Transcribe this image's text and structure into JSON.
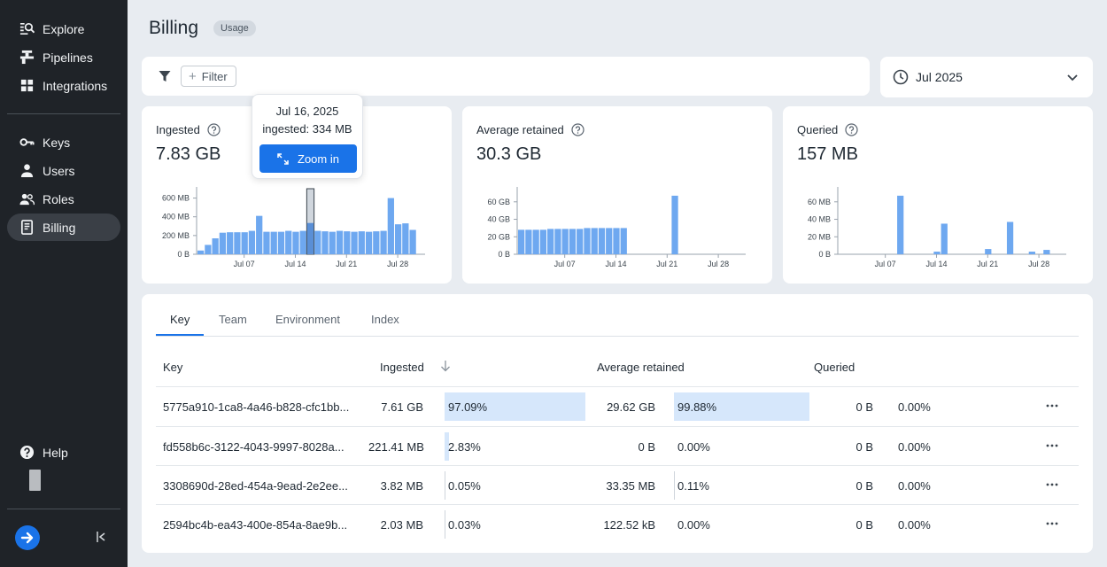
{
  "sidebar": {
    "items": [
      {
        "label": "Explore",
        "icon": "explore-icon"
      },
      {
        "label": "Pipelines",
        "icon": "pipelines-icon"
      },
      {
        "label": "Integrations",
        "icon": "integrations-icon"
      },
      {
        "label": "Keys",
        "icon": "key-icon"
      },
      {
        "label": "Users",
        "icon": "user-icon"
      },
      {
        "label": "Roles",
        "icon": "roles-icon"
      },
      {
        "label": "Billing",
        "icon": "billing-icon"
      }
    ],
    "help_label": "Help",
    "active": "Billing"
  },
  "header": {
    "title": "Billing",
    "badge": "Usage"
  },
  "filter": {
    "button_label": "Filter"
  },
  "date": {
    "value": "Jul 2025"
  },
  "metrics": [
    {
      "label": "Ingested",
      "value": "7.83 GB"
    },
    {
      "label": "Average retained",
      "value": "30.3 GB"
    },
    {
      "label": "Queried",
      "value": "157 MB"
    }
  ],
  "tooltip": {
    "date": "Jul 16, 2025",
    "detail": "ingested: 334 MB",
    "button": "Zoom in"
  },
  "chart_data": [
    {
      "type": "bar",
      "title": "Ingested",
      "ylabel": "MB",
      "ylim": [
        0,
        700
      ],
      "yticks": [
        "0 B",
        "200 MB",
        "400 MB",
        "600 MB"
      ],
      "ytick_values": [
        0,
        200,
        400,
        600
      ],
      "xticks": [
        "Jul 07",
        "Jul 14",
        "Jul 21",
        "Jul 28"
      ],
      "xtick_days": [
        7,
        14,
        21,
        28
      ],
      "days": [
        1,
        2,
        3,
        4,
        5,
        6,
        7,
        8,
        9,
        10,
        11,
        12,
        13,
        14,
        15,
        16,
        17,
        18,
        19,
        20,
        21,
        22,
        23,
        24,
        25,
        26,
        27,
        28,
        29,
        30,
        31
      ],
      "values": [
        40,
        100,
        170,
        230,
        235,
        235,
        235,
        250,
        410,
        240,
        240,
        240,
        250,
        240,
        250,
        334,
        250,
        245,
        240,
        250,
        245,
        240,
        245,
        240,
        245,
        250,
        600,
        320,
        330,
        260,
        null
      ],
      "highlight_day": 16
    },
    {
      "type": "bar",
      "title": "Average retained",
      "ylabel": "GB",
      "ylim": [
        0,
        75
      ],
      "yticks": [
        "0 B",
        "20 GB",
        "40 GB",
        "60 GB"
      ],
      "ytick_values": [
        0,
        20,
        40,
        60
      ],
      "xticks": [
        "Jul 07",
        "Jul 14",
        "Jul 21",
        "Jul 28"
      ],
      "xtick_days": [
        7,
        14,
        21,
        28
      ],
      "days": [
        1,
        2,
        3,
        4,
        5,
        6,
        7,
        8,
        9,
        10,
        11,
        12,
        13,
        14,
        15,
        16,
        17,
        18,
        19,
        20,
        21,
        22,
        23,
        24,
        25,
        26,
        27,
        28,
        29,
        30,
        31
      ],
      "values": [
        28,
        28,
        28,
        28,
        29,
        29,
        29,
        29,
        29,
        30,
        30,
        30,
        30,
        30,
        30,
        null,
        null,
        null,
        null,
        null,
        null,
        67,
        null,
        null,
        null,
        null,
        null,
        null,
        null,
        null,
        null
      ]
    },
    {
      "type": "bar",
      "title": "Queried",
      "ylabel": "MB",
      "ylim": [
        0,
        75
      ],
      "yticks": [
        "0 B",
        "20 MB",
        "40 MB",
        "60 MB"
      ],
      "ytick_values": [
        0,
        20,
        40,
        60
      ],
      "xticks": [
        "Jul 07",
        "Jul 14",
        "Jul 21",
        "Jul 28"
      ],
      "xtick_days": [
        7,
        14,
        21,
        28
      ],
      "days": [
        1,
        2,
        3,
        4,
        5,
        6,
        7,
        8,
        9,
        10,
        11,
        12,
        13,
        14,
        15,
        16,
        17,
        18,
        19,
        20,
        21,
        22,
        23,
        24,
        25,
        26,
        27,
        28,
        29,
        30,
        31
      ],
      "values": [
        null,
        null,
        null,
        null,
        null,
        null,
        null,
        null,
        67,
        null,
        null,
        null,
        null,
        3,
        35,
        null,
        null,
        null,
        null,
        null,
        6,
        null,
        null,
        37,
        null,
        null,
        3,
        null,
        5,
        null,
        null
      ]
    }
  ],
  "table": {
    "tabs": [
      "Key",
      "Team",
      "Environment",
      "Index"
    ],
    "active_tab": "Key",
    "columns": [
      "Key",
      "Ingested",
      "Average retained",
      "Queried"
    ],
    "rows": [
      {
        "key": "5775a910-1ca8-4a46-b828-cfc1bb...",
        "ingested": "7.61 GB",
        "ingested_pct": "97.09%",
        "ingested_frac": 0.9709,
        "retained": "29.62 GB",
        "retained_pct": "99.88%",
        "retained_frac": 0.9988,
        "queried": "0 B",
        "queried_pct": "0.00%"
      },
      {
        "key": "fd558b6c-3122-4043-9997-8028a...",
        "ingested": "221.41 MB",
        "ingested_pct": "2.83%",
        "ingested_frac": 0.0283,
        "retained": "0 B",
        "retained_pct": "0.00%",
        "retained_frac": 0,
        "queried": "0 B",
        "queried_pct": "0.00%"
      },
      {
        "key": "3308690d-28ed-454a-9ead-2e2ee...",
        "ingested": "3.82 MB",
        "ingested_pct": "0.05%",
        "ingested_frac": 0.0005,
        "retained": "33.35 MB",
        "retained_pct": "0.11%",
        "retained_frac": 0.0011,
        "queried": "0 B",
        "queried_pct": "0.00%"
      },
      {
        "key": "2594bc4b-ea43-400e-854a-8ae9b...",
        "ingested": "2.03 MB",
        "ingested_pct": "0.03%",
        "ingested_frac": 0.0003,
        "retained": "122.52 kB",
        "retained_pct": "0.00%",
        "retained_frac": 0,
        "queried": "0 B",
        "queried_pct": "0.00%"
      }
    ]
  },
  "colors": {
    "accent": "#1a73e8",
    "bar": "#6ea8f0",
    "bar_bg": "#d6e7fb",
    "sidebar": "#1f2328"
  }
}
